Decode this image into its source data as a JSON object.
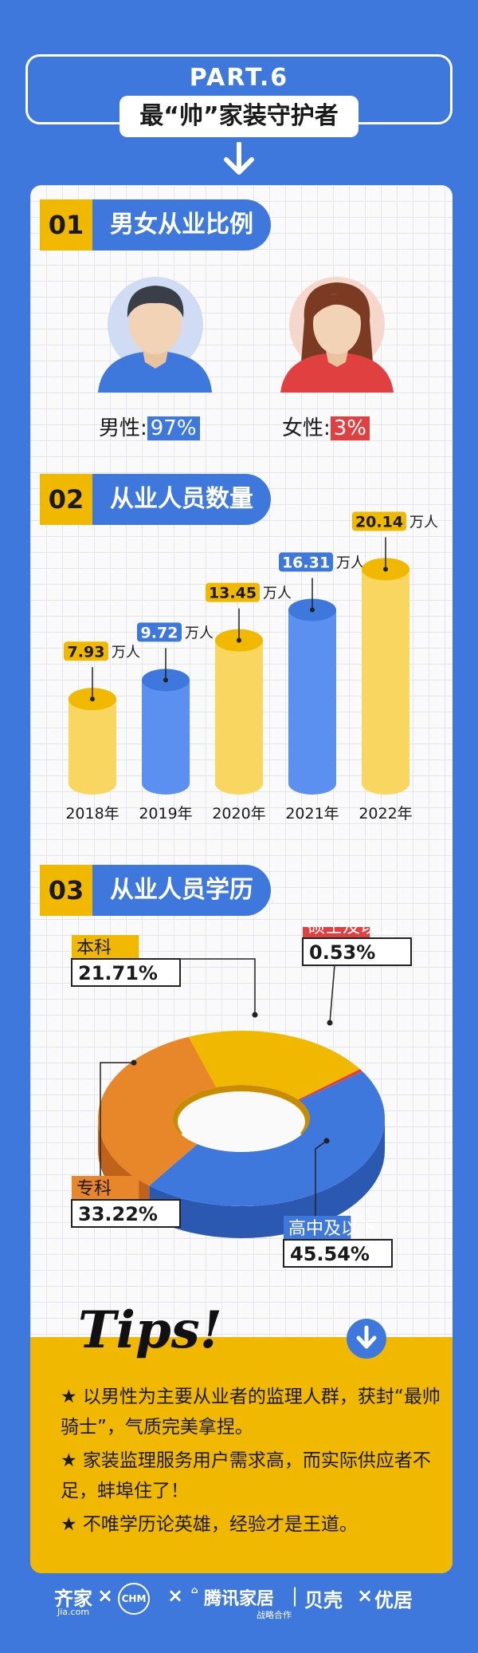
{
  "header": {
    "part": "PART.6",
    "title": "最“帅”家装守护者"
  },
  "section1": {
    "num": "01",
    "title": "男女从业比例",
    "male_label": "男性:",
    "male_pct": "97%",
    "female_label": "女性:",
    "female_pct": "3%"
  },
  "section2": {
    "num": "02",
    "title": "从业人员数量",
    "unit": "万人"
  },
  "section3": {
    "num": "03",
    "title": "从业人员学历"
  },
  "tips": {
    "title": "Tips!",
    "items": [
      "★  以男性为主要从业者的监理人群，获封“最帅骑士”，气质完美拿捏。",
      "★  家装监理服务用户需求高，而实际供应者不足，蚌埠住了！",
      "★  不唯学历论英雄，经验才是王道。"
    ]
  },
  "footer": {
    "brand1": "齐家",
    "brand1_sub": "Jia.com",
    "brand2": "CHM",
    "brand3": "腾讯家居",
    "brand3_sub": "战略合作",
    "brand4": "贝壳",
    "brand5": "优居",
    "sep": "×"
  },
  "chart_data": [
    {
      "type": "bar",
      "categories": [
        "2018年",
        "2019年",
        "2020年",
        "2021年",
        "2022年"
      ],
      "values": [
        7.93,
        9.72,
        13.45,
        16.31,
        20.14
      ],
      "value_labels": [
        "7.93",
        "9.72",
        "13.45",
        "16.31",
        "20.14"
      ],
      "unit": "万人",
      "colors": [
        "#f9d65f",
        "#5b8ff0",
        "#f9d65f",
        "#5b8ff0",
        "#f9d65f"
      ],
      "top_colors": [
        "#f1b800",
        "#3e78dd",
        "#f1b800",
        "#3e78dd",
        "#f1b800"
      ],
      "ylim": [
        0,
        21
      ]
    },
    {
      "type": "pie",
      "labels": [
        "本科",
        "硕士及以上",
        "高中及以下",
        "专科"
      ],
      "values": [
        21.71,
        0.53,
        45.54,
        33.22
      ],
      "value_labels": [
        "21.71%",
        "0.53%",
        "45.54%",
        "33.22%"
      ],
      "colors": [
        "#f1b800",
        "#e0403f",
        "#3e78dd",
        "#e8862a"
      ]
    }
  ]
}
